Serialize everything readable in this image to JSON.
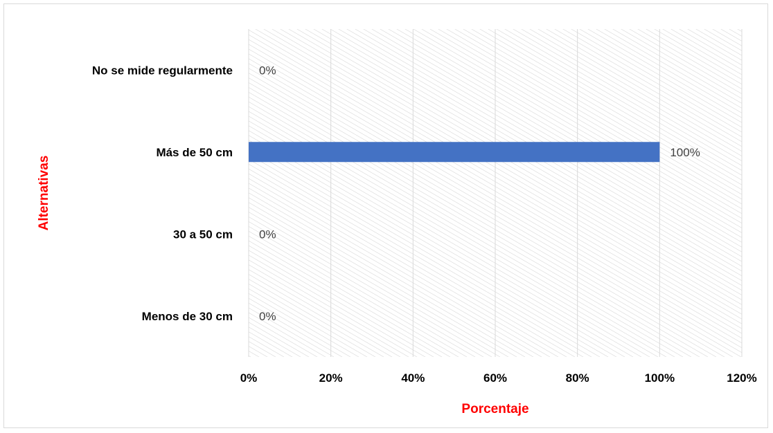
{
  "chart_data": {
    "type": "bar",
    "orientation": "horizontal",
    "categories": [
      "Menos de 30 cm",
      "30 a 50 cm",
      "Más de 50 cm",
      "No se mide regularmente"
    ],
    "values": [
      0,
      0,
      100,
      0
    ],
    "value_labels": [
      "0%",
      "0%",
      "100%",
      "0%"
    ],
    "xlabel": "Porcentaje",
    "ylabel": "Alternativas",
    "xlim": [
      0,
      120
    ],
    "x_ticks": [
      0,
      20,
      40,
      60,
      80,
      100,
      120
    ],
    "x_tick_labels": [
      "0%",
      "20%",
      "40%",
      "60%",
      "80%",
      "100%",
      "120%"
    ],
    "grid": true,
    "plot_background": "diagonal-hatch",
    "legend": "none",
    "colors": {
      "bar": "#4472C4",
      "axis_title": "#FF0000",
      "gridline": "#d9d9d9",
      "hatch": "#d0d0d0"
    }
  }
}
